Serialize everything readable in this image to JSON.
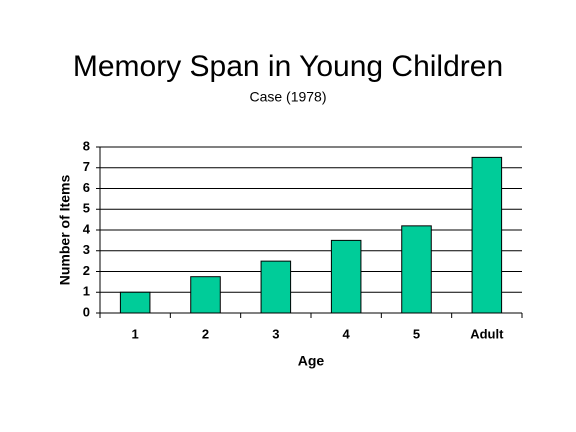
{
  "chart_data": {
    "type": "bar",
    "title": "Memory Span in Young Children",
    "subtitle": "Case (1978)",
    "x_label": "Age",
    "y_label": "Number of Items",
    "categories": [
      "1",
      "2",
      "3",
      "4",
      "5",
      "Adult"
    ],
    "values": [
      1,
      1.75,
      2.5,
      3.5,
      4.2,
      7.5
    ],
    "color": "#00cc99",
    "ylim": [
      0,
      8
    ],
    "yticks": [
      0,
      1,
      2,
      3,
      4,
      5,
      6,
      7,
      8
    ],
    "grid": true
  }
}
